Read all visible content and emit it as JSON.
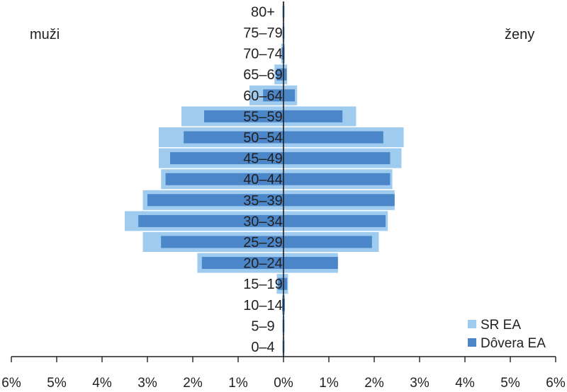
{
  "chart_data": {
    "type": "bar",
    "orientation": "horizontal-population-pyramid",
    "categories": [
      "0–4",
      "5–9",
      "10–14",
      "15–19",
      "20–24",
      "25–29",
      "30–34",
      "35–39",
      "40–44",
      "45–49",
      "50–54",
      "55–59",
      "60–64",
      "65–69",
      "70–74",
      "75–79",
      "80+"
    ],
    "left_label": "muži",
    "right_label": "ženy",
    "x_ticks": [
      "6%",
      "5%",
      "4%",
      "3%",
      "2%",
      "1%",
      "0%",
      "1%",
      "2%",
      "3%",
      "4%",
      "5%",
      "6%"
    ],
    "xlim": [
      -6,
      6
    ],
    "x_unit": "%",
    "series": [
      {
        "name": "SR EA",
        "color": "#9fcbee",
        "men": [
          0.02,
          0.02,
          0.03,
          0.15,
          1.9,
          3.1,
          3.5,
          3.1,
          2.7,
          2.75,
          2.75,
          2.25,
          0.75,
          0.2,
          0.05,
          0.02,
          0.02
        ],
        "women": [
          0.02,
          0.02,
          0.03,
          0.1,
          1.2,
          2.1,
          2.3,
          2.45,
          2.4,
          2.6,
          2.65,
          1.6,
          0.3,
          0.08,
          0.03,
          0.02,
          0.02
        ]
      },
      {
        "name": "Dôvera EA",
        "color": "#4a86c8",
        "men": [
          0.02,
          0.02,
          0.03,
          0.12,
          1.8,
          2.7,
          3.2,
          3.0,
          2.6,
          2.5,
          2.2,
          1.75,
          0.45,
          0.15,
          0.04,
          0.02,
          0.02
        ],
        "women": [
          0.02,
          0.02,
          0.03,
          0.08,
          1.2,
          1.95,
          2.25,
          2.45,
          2.35,
          2.35,
          2.2,
          1.3,
          0.25,
          0.07,
          0.02,
          0.02,
          0.02
        ]
      }
    ],
    "legend_position": "bottom-right",
    "grid": false
  },
  "colors": {
    "axis": "#231f20",
    "text": "#231f20"
  }
}
